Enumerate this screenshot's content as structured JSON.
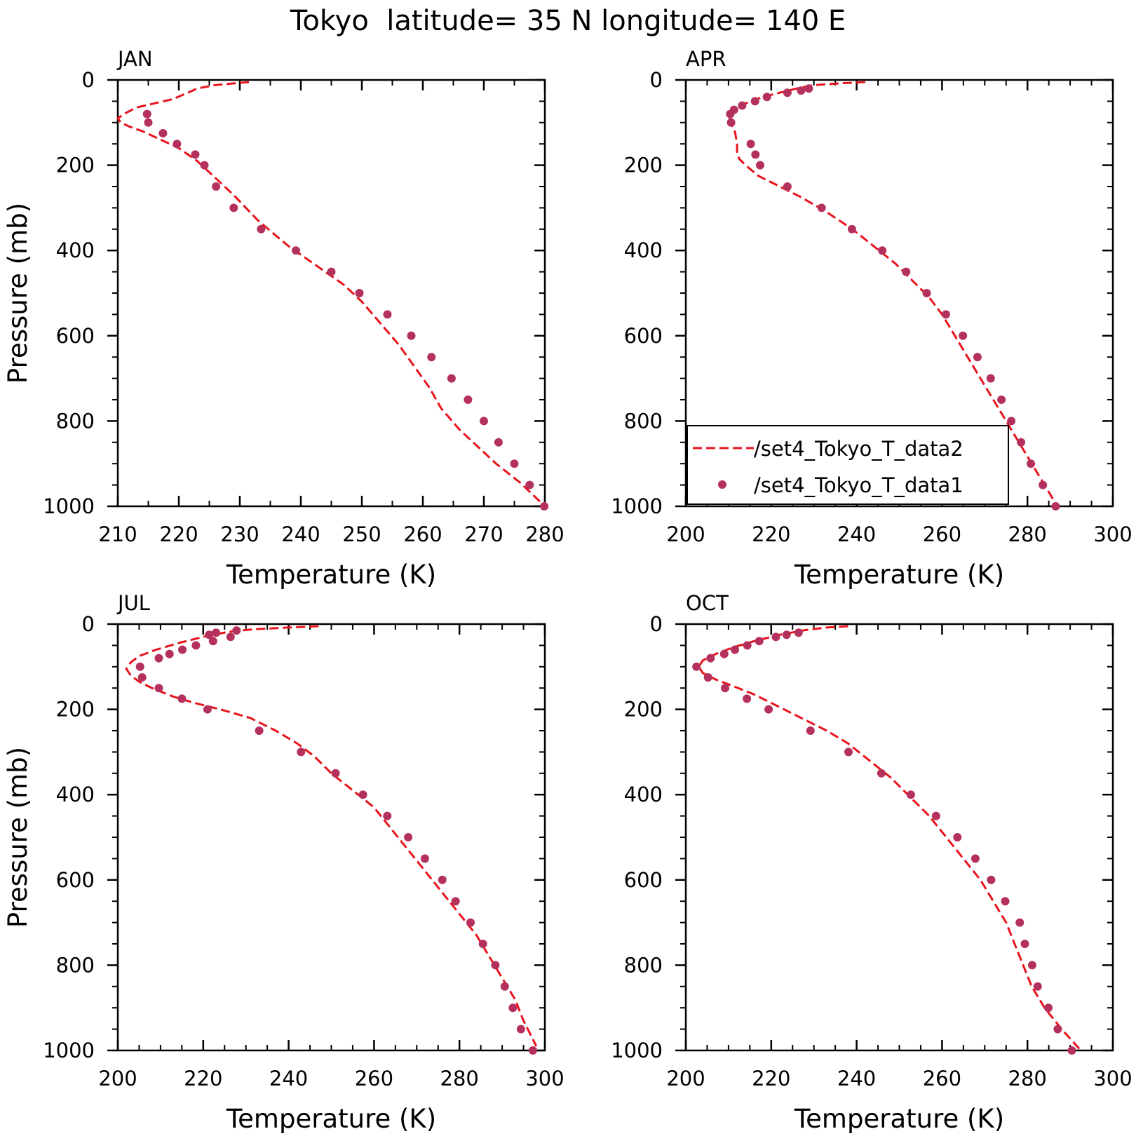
{
  "figure_title": "Tokyo  latitude= 35 N longitude= 140 E",
  "chart_data": [
    {
      "type": "line",
      "panel_label": "JAN",
      "xlabel": "Temperature (K)",
      "ylabel": "Pressure (mb)",
      "xlim": [
        210,
        280
      ],
      "ylim": [
        0,
        1000
      ],
      "y_inverted": true,
      "x_ticks": [
        "210",
        "220",
        "230",
        "240",
        "250",
        "260",
        "270",
        "280"
      ],
      "y_ticks": [
        "0",
        "200",
        "400",
        "600",
        "800",
        "1000"
      ],
      "legend": null,
      "series": [
        {
          "style": "dashed-line",
          "color": "#e8141c",
          "points": [
            [
              231.5,
              5
            ],
            [
              229,
              8
            ],
            [
              226,
              12
            ],
            [
              223,
              20
            ],
            [
              221.5,
              30
            ],
            [
              219,
              45
            ],
            [
              216,
              55
            ],
            [
              213,
              65
            ],
            [
              211,
              80
            ],
            [
              210,
              90
            ],
            [
              210.5,
              100
            ],
            [
              212,
              110
            ],
            [
              214,
              120
            ],
            [
              217,
              140
            ],
            [
              220,
              160
            ],
            [
              223,
              190
            ],
            [
              226,
              230
            ],
            [
              229,
              270
            ],
            [
              233,
              330
            ],
            [
              238,
              390
            ],
            [
              243,
              440
            ],
            [
              247,
              480
            ],
            [
              250,
              520
            ],
            [
              253,
              570
            ],
            [
              256,
              620
            ],
            [
              258.5,
              670
            ],
            [
              261,
              720
            ],
            [
              263,
              770
            ],
            [
              266,
              820
            ],
            [
              269,
              860
            ],
            [
              272,
              900
            ],
            [
              276,
              945
            ],
            [
              280,
              1000
            ]
          ]
        },
        {
          "style": "markers",
          "color": "#b5315d",
          "points": [
            [
              214.8,
              80
            ],
            [
              215,
              100
            ],
            [
              217.4,
              125
            ],
            [
              219.7,
              150
            ],
            [
              222.7,
              175
            ],
            [
              224.2,
              200
            ],
            [
              226.1,
              250
            ],
            [
              229,
              300
            ],
            [
              233.5,
              350
            ],
            [
              239.2,
              400
            ],
            [
              245,
              450
            ],
            [
              249.6,
              500
            ],
            [
              254.2,
              550
            ],
            [
              258.1,
              600
            ],
            [
              261.4,
              650
            ],
            [
              264.7,
              700
            ],
            [
              267.4,
              750
            ],
            [
              270,
              800
            ],
            [
              272.4,
              850
            ],
            [
              275,
              900
            ],
            [
              277.5,
              950
            ],
            [
              279.9,
              1000
            ]
          ]
        }
      ]
    },
    {
      "type": "line",
      "panel_label": "APR",
      "xlabel": "Temperature (K)",
      "ylabel": "",
      "xlim": [
        200,
        300
      ],
      "ylim": [
        0,
        1000
      ],
      "y_inverted": true,
      "x_ticks": [
        "200",
        "220",
        "240",
        "260",
        "280",
        "300"
      ],
      "y_ticks": [
        "0",
        "200",
        "400",
        "600",
        "800",
        "1000"
      ],
      "legend": {
        "position": "bottom-left",
        "entries": [
          {
            "label": "/set4_Tokyo_T_data2",
            "style": "dashed-line"
          },
          {
            "label": "/set4_Tokyo_T_data1",
            "style": "markers"
          }
        ]
      },
      "series": [
        {
          "style": "dashed-line",
          "color": "#e8141c",
          "points": [
            [
              242,
              5
            ],
            [
              236,
              8
            ],
            [
              230,
              12
            ],
            [
              226,
              20
            ],
            [
              222,
              30
            ],
            [
              218,
              40
            ],
            [
              214,
              55
            ],
            [
              211,
              70
            ],
            [
              210,
              85
            ],
            [
              210.5,
              100
            ],
            [
              211.5,
              120
            ],
            [
              212,
              150
            ],
            [
              212,
              170
            ],
            [
              212.5,
              185
            ],
            [
              214,
              200
            ],
            [
              217,
              225
            ],
            [
              222,
              250
            ],
            [
              227,
              275
            ],
            [
              233,
              310
            ],
            [
              239,
              350
            ],
            [
              244,
              390
            ],
            [
              249,
              430
            ],
            [
              253,
              470
            ],
            [
              257,
              510
            ],
            [
              260,
              550
            ],
            [
              263,
              600
            ],
            [
              266,
              650
            ],
            [
              269,
              700
            ],
            [
              272,
              750
            ],
            [
              275,
              800
            ],
            [
              278,
              850
            ],
            [
              281,
              900
            ],
            [
              284,
              950
            ],
            [
              287,
              1000
            ]
          ]
        },
        {
          "style": "markers",
          "color": "#b5315d",
          "points": [
            [
              228.8,
              20
            ],
            [
              227,
              25
            ],
            [
              223.8,
              30
            ],
            [
              219,
              40
            ],
            [
              216.2,
              50
            ],
            [
              213.2,
              60
            ],
            [
              211.3,
              70
            ],
            [
              210.4,
              80
            ],
            [
              210.6,
              100
            ],
            [
              215.2,
              150
            ],
            [
              216.3,
              175
            ],
            [
              217.4,
              200
            ],
            [
              223.8,
              250
            ],
            [
              231.8,
              300
            ],
            [
              238.9,
              350
            ],
            [
              246,
              400
            ],
            [
              251.6,
              450
            ],
            [
              256.4,
              500
            ],
            [
              260.9,
              550
            ],
            [
              264.9,
              600
            ],
            [
              268.3,
              650
            ],
            [
              271.4,
              700
            ],
            [
              273.9,
              750
            ],
            [
              276.2,
              800
            ],
            [
              278.5,
              850
            ],
            [
              280.8,
              900
            ],
            [
              283.6,
              950
            ],
            [
              286.6,
              1000
            ]
          ]
        }
      ]
    },
    {
      "type": "line",
      "panel_label": "JUL",
      "xlabel": "Temperature (K)",
      "ylabel": "Pressure (mb)",
      "xlim": [
        200,
        300
      ],
      "ylim": [
        0,
        1000
      ],
      "y_inverted": true,
      "x_ticks": [
        "200",
        "220",
        "240",
        "260",
        "280",
        "300"
      ],
      "y_ticks": [
        "0",
        "200",
        "400",
        "600",
        "800",
        "1000"
      ],
      "legend": null,
      "series": [
        {
          "style": "dashed-line",
          "color": "#e8141c",
          "points": [
            [
              247,
              5
            ],
            [
              240,
              8
            ],
            [
              232,
              12
            ],
            [
              226,
              18
            ],
            [
              220,
              30
            ],
            [
              214,
              45
            ],
            [
              209,
              60
            ],
            [
              205,
              75
            ],
            [
              203,
              90
            ],
            [
              202,
              105
            ],
            [
              203,
              120
            ],
            [
              205,
              135
            ],
            [
              208,
              150
            ],
            [
              213,
              170
            ],
            [
              218,
              185
            ],
            [
              224,
              200
            ],
            [
              231,
              220
            ],
            [
              237,
              250
            ],
            [
              242,
              280
            ],
            [
              246,
              310
            ],
            [
              250,
              350
            ],
            [
              255,
              390
            ],
            [
              260,
              430
            ],
            [
              264,
              480
            ],
            [
              268,
              530
            ],
            [
              272,
              580
            ],
            [
              276,
              630
            ],
            [
              280,
              680
            ],
            [
              284,
              730
            ],
            [
              287,
              780
            ],
            [
              290,
              830
            ],
            [
              293,
              880
            ],
            [
              295,
              930
            ],
            [
              298,
              990
            ]
          ]
        },
        {
          "style": "markers",
          "color": "#b5315d",
          "points": [
            [
              227.8,
              15
            ],
            [
              223,
              20
            ],
            [
              221.4,
              25
            ],
            [
              226.4,
              30
            ],
            [
              222.3,
              40
            ],
            [
              218.3,
              50
            ],
            [
              215.1,
              60
            ],
            [
              212.1,
              70
            ],
            [
              209.6,
              80
            ],
            [
              205.2,
              100
            ],
            [
              205.7,
              125
            ],
            [
              209.6,
              150
            ],
            [
              215,
              175
            ],
            [
              221,
              200
            ],
            [
              233.1,
              250
            ],
            [
              242.9,
              300
            ],
            [
              251,
              350
            ],
            [
              257.4,
              400
            ],
            [
              263.1,
              450
            ],
            [
              268,
              500
            ],
            [
              271.9,
              550
            ],
            [
              276,
              600
            ],
            [
              279.1,
              650
            ],
            [
              282.6,
              700
            ],
            [
              285.5,
              750
            ],
            [
              288.4,
              800
            ],
            [
              290.6,
              850
            ],
            [
              292.5,
              900
            ],
            [
              294.4,
              950
            ],
            [
              297.2,
              1000
            ]
          ]
        }
      ]
    },
    {
      "type": "line",
      "panel_label": "OCT",
      "xlabel": "Temperature (K)",
      "ylabel": "",
      "xlim": [
        200,
        300
      ],
      "ylim": [
        0,
        1000
      ],
      "y_inverted": true,
      "x_ticks": [
        "200",
        "220",
        "240",
        "260",
        "280",
        "300"
      ],
      "y_ticks": [
        "0",
        "200",
        "400",
        "600",
        "800",
        "1000"
      ],
      "legend": null,
      "series": [
        {
          "style": "dashed-line",
          "color": "#e8141c",
          "points": [
            [
              238,
              5
            ],
            [
              233,
              8
            ],
            [
              228,
              14
            ],
            [
              222,
              25
            ],
            [
              216,
              40
            ],
            [
              211,
              55
            ],
            [
              207,
              70
            ],
            [
              204,
              85
            ],
            [
              203,
              100
            ],
            [
              204,
              115
            ],
            [
              207,
              130
            ],
            [
              211,
              145
            ],
            [
              216,
              165
            ],
            [
              221,
              190
            ],
            [
              227,
              220
            ],
            [
              233,
              250
            ],
            [
              238,
              280
            ],
            [
              243,
              320
            ],
            [
              248,
              360
            ],
            [
              253,
              410
            ],
            [
              257,
              450
            ],
            [
              261,
              500
            ],
            [
              265,
              550
            ],
            [
              269,
              600
            ],
            [
              272,
              650
            ],
            [
              275,
              700
            ],
            [
              277,
              750
            ],
            [
              279,
              800
            ],
            [
              281,
              850
            ],
            [
              284,
              900
            ],
            [
              288,
              950
            ],
            [
              292.5,
              1000
            ]
          ]
        },
        {
          "style": "markers",
          "color": "#b5315d",
          "points": [
            [
              226.4,
              20
            ],
            [
              223.6,
              25
            ],
            [
              221.1,
              30
            ],
            [
              217.2,
              40
            ],
            [
              214.4,
              50
            ],
            [
              211.5,
              60
            ],
            [
              209,
              70
            ],
            [
              205.8,
              80
            ],
            [
              202.5,
              100
            ],
            [
              205.2,
              125
            ],
            [
              209.2,
              150
            ],
            [
              214.3,
              175
            ],
            [
              219.4,
              200
            ],
            [
              229.2,
              250
            ],
            [
              238.1,
              300
            ],
            [
              245.8,
              350
            ],
            [
              252.7,
              400
            ],
            [
              258.6,
              450
            ],
            [
              263.6,
              500
            ],
            [
              267.8,
              550
            ],
            [
              271.5,
              600
            ],
            [
              274.8,
              650
            ],
            [
              278.2,
              700
            ],
            [
              279.4,
              750
            ],
            [
              281.1,
              800
            ],
            [
              282.4,
              850
            ],
            [
              284.9,
              900
            ],
            [
              287.1,
              950
            ],
            [
              290.4,
              1000
            ]
          ]
        }
      ]
    }
  ]
}
